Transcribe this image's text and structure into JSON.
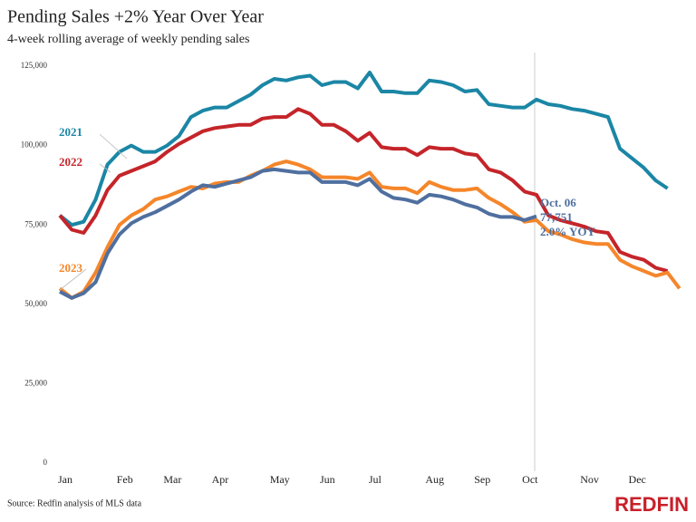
{
  "chart_data": {
    "type": "line",
    "title": "Pending Sales +2% Year Over Year",
    "subtitle": "4-week rolling average of weekly pending sales",
    "source": "Source: Redfin analysis of MLS data",
    "brand": "REDFIN",
    "categories": [
      "Jan",
      null,
      null,
      null,
      null,
      "Feb",
      null,
      null,
      null,
      "Mar",
      null,
      null,
      null,
      "Apr",
      null,
      null,
      null,
      null,
      "May",
      null,
      null,
      null,
      "Jun",
      null,
      null,
      null,
      "Jul",
      null,
      null,
      null,
      null,
      "Aug",
      null,
      null,
      null,
      "Sep",
      null,
      null,
      null,
      "Oct",
      null,
      null,
      null,
      null,
      "Nov",
      null,
      null,
      null,
      "Dec",
      null,
      null,
      null,
      null
    ],
    "ylim": [
      0,
      125000
    ],
    "yticks": [
      0,
      {
        "value": 25000,
        "label": "25,000"
      },
      {
        "value": 50000,
        "label": "50,000"
      },
      {
        "value": 75000,
        "label": "75,000"
      },
      {
        "value": 100000,
        "label": "100,000"
      },
      {
        "value": 125000,
        "label": "125,000"
      }
    ],
    "series": [
      {
        "name": "2021",
        "color": "#1b86a5",
        "values": [
          78000,
          75000,
          76000,
          83000,
          94000,
          98000,
          100000,
          98000,
          98000,
          100000,
          103000,
          109000,
          111000,
          112000,
          112000,
          114000,
          116000,
          119000,
          121000,
          120500,
          121500,
          122000,
          119000,
          120000,
          120000,
          118000,
          123000,
          117000,
          117000,
          116500,
          116500,
          120500,
          120000,
          119000,
          117000,
          117500,
          113000,
          112500,
          112000,
          112000,
          114500,
          113000,
          112500,
          111500,
          111000,
          110000,
          109000,
          99000,
          96000,
          93000,
          89000,
          86500,
          null
        ]
      },
      {
        "name": "2022",
        "color": "#c4252a",
        "values": [
          78000,
          73500,
          72500,
          78000,
          86000,
          90500,
          92000,
          93500,
          95000,
          98000,
          100500,
          102500,
          104500,
          105500,
          106000,
          106500,
          106500,
          108500,
          109000,
          109000,
          111500,
          110000,
          106500,
          106500,
          104500,
          101500,
          104000,
          99500,
          99000,
          99000,
          97000,
          99500,
          99000,
          99000,
          97500,
          97000,
          92500,
          91500,
          89000,
          85500,
          84500,
          78000,
          76500,
          75500,
          74500,
          73000,
          72500,
          66500,
          65000,
          64000,
          61500,
          60500,
          null
        ]
      },
      {
        "name": "2023",
        "color": "#f5862a",
        "values": [
          55000,
          52000,
          54000,
          60000,
          68000,
          75000,
          78000,
          80000,
          83000,
          84000,
          85500,
          87000,
          86500,
          88000,
          88500,
          88500,
          90500,
          92000,
          94000,
          95000,
          94000,
          92500,
          90000,
          90000,
          90000,
          89500,
          91500,
          87000,
          86500,
          86500,
          85000,
          88500,
          87000,
          86000,
          86000,
          86500,
          83500,
          81500,
          79000,
          76000,
          76500,
          73000,
          72000,
          70500,
          69500,
          69000,
          69000,
          64000,
          62000,
          60500,
          59000,
          60000,
          55000
        ]
      },
      {
        "color": "#4f6f9f",
        "values": [
          54000,
          52000,
          53500,
          57000,
          66000,
          72000,
          75500,
          77500,
          79000,
          81000,
          83000,
          85500,
          87500,
          87000,
          88000,
          89000,
          90000,
          92000,
          92500,
          92000,
          91500,
          91500,
          88500,
          88500,
          88500,
          87500,
          89500,
          85500,
          83500,
          83000,
          82000,
          84500,
          84000,
          83000,
          81500,
          80500,
          78500,
          77500,
          77500,
          76500,
          77751,
          null,
          null,
          null,
          null,
          null,
          null,
          null,
          null,
          null,
          null,
          null,
          null
        ]
      }
    ],
    "annotations": [
      "Oct. 06",
      "77,751",
      "2.0% YOY"
    ],
    "grid": false
  }
}
